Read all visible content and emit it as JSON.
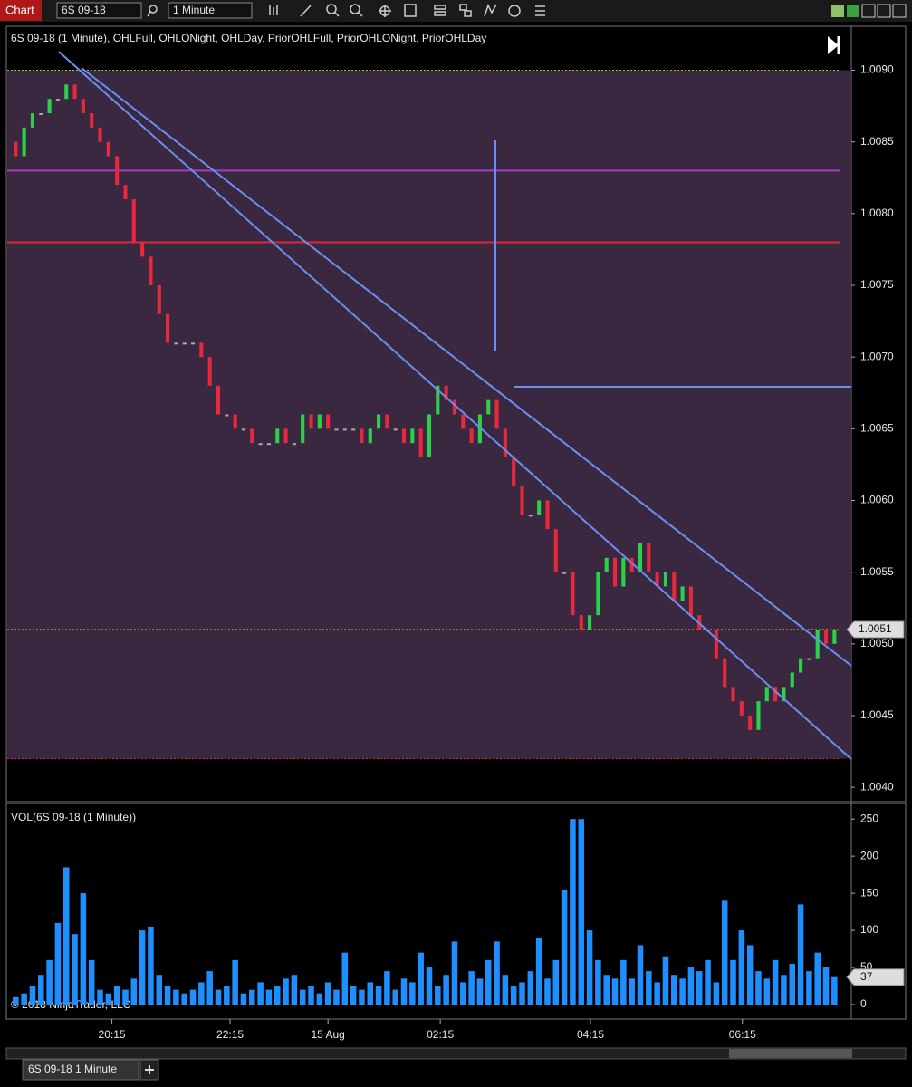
{
  "toolbar": {
    "title": "Chart",
    "instrument": "6S 09-18",
    "interval": "1 Minute"
  },
  "tab": "6S 09-18 1 Minute",
  "copyright": "© 2018 NinjaTrader, LLC",
  "chart_data": [
    {
      "type": "candlestick",
      "title": "6S 09-18 (1 Minute), OHLFull, OHLONight, OHLDay, PriorOHLFull, PriorOHLONight, PriorOHLDay",
      "x": [
        1,
        2,
        3,
        4,
        5,
        6,
        7,
        8,
        9,
        10,
        11,
        12,
        13,
        14,
        15,
        16,
        17,
        18,
        19,
        20,
        21,
        22,
        23,
        24,
        25,
        26,
        27,
        28,
        29,
        30,
        31,
        32,
        33,
        34,
        35,
        36,
        37,
        38,
        39,
        40,
        41,
        42,
        43,
        44,
        45,
        46,
        47,
        48,
        49,
        50,
        51,
        52,
        53,
        54,
        55,
        56,
        57,
        58,
        59,
        60,
        61,
        62,
        63,
        64,
        65,
        66,
        67,
        68,
        69,
        70,
        71,
        72,
        73,
        74,
        75,
        76,
        77,
        78,
        79,
        80,
        81,
        82,
        83,
        84,
        85,
        86,
        87,
        88,
        89,
        90,
        91,
        92,
        93,
        94,
        95,
        96,
        97,
        98
      ],
      "open": [
        1.0085,
        1.0084,
        1.0086,
        1.0087,
        1.0087,
        1.0088,
        1.0088,
        1.0089,
        1.0088,
        1.0087,
        1.0086,
        1.0085,
        1.0084,
        1.0082,
        1.0081,
        1.0078,
        1.0077,
        1.0075,
        1.0073,
        1.0071,
        1.0071,
        1.0071,
        1.0071,
        1.007,
        1.0068,
        1.0066,
        1.0066,
        1.0065,
        1.0065,
        1.0064,
        1.0064,
        1.0064,
        1.0065,
        1.0064,
        1.0064,
        1.0066,
        1.0065,
        1.0066,
        1.0065,
        1.0065,
        1.0065,
        1.0065,
        1.0064,
        1.0065,
        1.0066,
        1.0065,
        1.0065,
        1.0064,
        1.0065,
        1.0063,
        1.0066,
        1.0068,
        1.0067,
        1.0066,
        1.0065,
        1.0064,
        1.0066,
        1.0067,
        1.0065,
        1.0063,
        1.0061,
        1.0059,
        1.0059,
        1.006,
        1.0058,
        1.0055,
        1.0055,
        1.0052,
        1.0051,
        1.0052,
        1.0055,
        1.0056,
        1.0054,
        1.0056,
        1.0055,
        1.0057,
        1.0055,
        1.0054,
        1.0055,
        1.0053,
        1.0054,
        1.0052,
        1.0051,
        1.0051,
        1.0049,
        1.0047,
        1.0046,
        1.0045,
        1.0044,
        1.0046,
        1.0047,
        1.0046,
        1.0047,
        1.0048,
        1.0049,
        1.0049,
        1.0051,
        1.005
      ],
      "values": [
        1.0084,
        1.0086,
        1.0087,
        1.0087,
        1.0088,
        1.0088,
        1.0089,
        1.0088,
        1.0087,
        1.0086,
        1.0085,
        1.0084,
        1.0082,
        1.0081,
        1.0078,
        1.0077,
        1.0075,
        1.0073,
        1.0071,
        1.0071,
        1.0071,
        1.0071,
        1.007,
        1.0068,
        1.0066,
        1.0066,
        1.0065,
        1.0065,
        1.0064,
        1.0064,
        1.0064,
        1.0065,
        1.0064,
        1.0064,
        1.0066,
        1.0065,
        1.0066,
        1.0065,
        1.0065,
        1.0065,
        1.0065,
        1.0064,
        1.0065,
        1.0066,
        1.0065,
        1.0065,
        1.0064,
        1.0065,
        1.0063,
        1.0066,
        1.0068,
        1.0067,
        1.0066,
        1.0065,
        1.0064,
        1.0066,
        1.0067,
        1.0065,
        1.0063,
        1.0061,
        1.0059,
        1.0059,
        1.006,
        1.0058,
        1.0055,
        1.0055,
        1.0052,
        1.0051,
        1.0052,
        1.0055,
        1.0056,
        1.0054,
        1.0056,
        1.0055,
        1.0057,
        1.0055,
        1.0054,
        1.0055,
        1.0053,
        1.0054,
        1.0052,
        1.0051,
        1.0051,
        1.0049,
        1.0047,
        1.0046,
        1.0045,
        1.0044,
        1.0046,
        1.0047,
        1.0046,
        1.0047,
        1.0048,
        1.0049,
        1.0049,
        1.0051,
        1.005,
        1.0051
      ],
      "up_color": "#2bd14a",
      "down_color": "#e8283c",
      "flat_color": "#aaaaaa",
      "levels": [
        {
          "value": 1.009,
          "color": "#7fd03a",
          "dash": true
        },
        {
          "value": 1.0083,
          "color": "#a040c0",
          "dash": false
        },
        {
          "value": 1.0078,
          "color": "#d8283c",
          "dash": false
        },
        {
          "value": 1.0051,
          "color": "#d8d020",
          "dash": true
        },
        {
          "value": 1.0042,
          "color": "#d8283c",
          "dash": true
        }
      ],
      "band": [
        1.0042,
        1.009
      ],
      "band_color": "#3a2840",
      "last_price": {
        "value": 1.0051,
        "label": "1.0051"
      },
      "xlim": [
        0,
        100
      ],
      "ylim": [
        1.0039,
        1.0093
      ],
      "yticks": [
        {
          "value": 1.009,
          "label": "1.0090"
        },
        {
          "value": 1.0085,
          "label": "1.0085"
        },
        {
          "value": 1.008,
          "label": "1.0080"
        },
        {
          "value": 1.0075,
          "label": "1.0075"
        },
        {
          "value": 1.007,
          "label": "1.0070"
        },
        {
          "value": 1.0065,
          "label": "1.0065"
        },
        {
          "value": 1.006,
          "label": "1.0060"
        },
        {
          "value": 1.0055,
          "label": "1.0055"
        },
        {
          "value": 1.005,
          "label": "1.0050"
        },
        {
          "value": 1.0045,
          "label": "1.0045"
        },
        {
          "value": 1.004,
          "label": "1.0040"
        }
      ]
    },
    {
      "type": "bar",
      "title": "VOL(6S 09-18 (1 Minute))",
      "x": [
        1,
        2,
        3,
        4,
        5,
        6,
        7,
        8,
        9,
        10,
        11,
        12,
        13,
        14,
        15,
        16,
        17,
        18,
        19,
        20,
        21,
        22,
        23,
        24,
        25,
        26,
        27,
        28,
        29,
        30,
        31,
        32,
        33,
        34,
        35,
        36,
        37,
        38,
        39,
        40,
        41,
        42,
        43,
        44,
        45,
        46,
        47,
        48,
        49,
        50,
        51,
        52,
        53,
        54,
        55,
        56,
        57,
        58,
        59,
        60,
        61,
        62,
        63,
        64,
        65,
        66,
        67,
        68,
        69,
        70,
        71,
        72,
        73,
        74,
        75,
        76,
        77,
        78,
        79,
        80,
        81,
        82,
        83,
        84,
        85,
        86,
        87,
        88,
        89,
        90,
        91,
        92,
        93,
        94,
        95,
        96,
        97,
        98
      ],
      "values": [
        10,
        15,
        25,
        40,
        60,
        110,
        185,
        95,
        150,
        60,
        20,
        15,
        25,
        20,
        35,
        100,
        105,
        40,
        25,
        20,
        15,
        20,
        30,
        45,
        20,
        25,
        60,
        15,
        20,
        30,
        20,
        25,
        35,
        40,
        20,
        25,
        15,
        30,
        20,
        70,
        25,
        20,
        30,
        25,
        45,
        20,
        35,
        30,
        70,
        50,
        25,
        40,
        85,
        30,
        45,
        35,
        60,
        85,
        40,
        25,
        30,
        45,
        90,
        35,
        60,
        155,
        250,
        250,
        100,
        60,
        40,
        35,
        60,
        35,
        80,
        45,
        30,
        65,
        40,
        35,
        50,
        45,
        60,
        30,
        140,
        60,
        100,
        80,
        45,
        35,
        60,
        40,
        55,
        135,
        45,
        70,
        50,
        37
      ],
      "color": "#1e8fff",
      "last_value": 37,
      "xlim": [
        0,
        100
      ],
      "ylim": [
        0,
        260
      ],
      "yticks": [
        0,
        50,
        100,
        150,
        200,
        250
      ],
      "xticks": [
        {
          "value": 12.4,
          "label": "20:15"
        },
        {
          "value": 26.4,
          "label": "22:15"
        },
        {
          "value": 38,
          "label": "15 Aug"
        },
        {
          "value": 51.3,
          "label": "02:15"
        },
        {
          "value": 69.1,
          "label": "04:15"
        },
        {
          "value": 87.1,
          "label": "06:15"
        }
      ]
    }
  ]
}
